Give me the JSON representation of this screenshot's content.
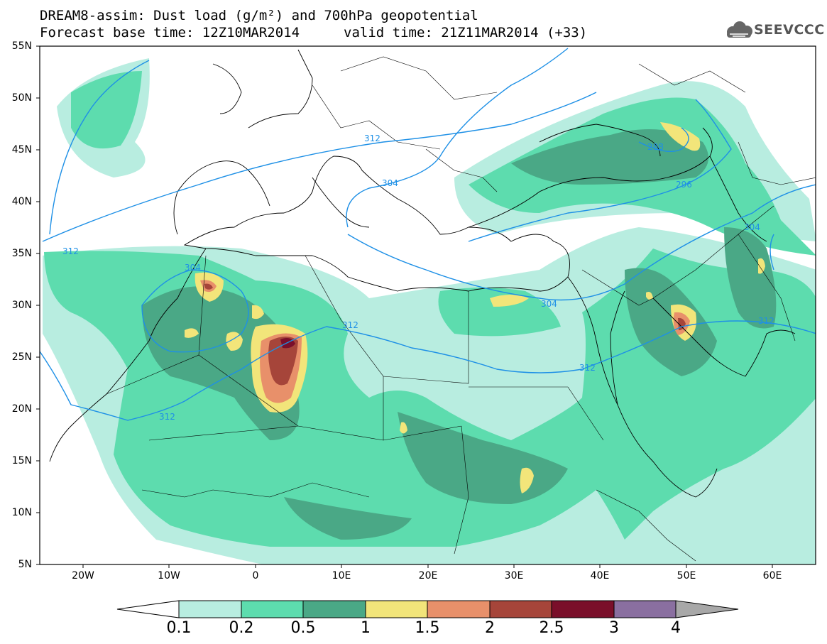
{
  "title": {
    "line1": "DREAM8-assim: Dust load (g/m²) and 700hPa geopotential",
    "line2_base": "Forecast base time: 12Z10MAR2014",
    "line2_valid": "valid time: 21Z11MAR2014 (+33)"
  },
  "logo": {
    "text": "SEEVCCC",
    "icon": "cloud-icon"
  },
  "axes": {
    "lat_labels": [
      "55N",
      "50N",
      "45N",
      "40N",
      "35N",
      "30N",
      "25N",
      "20N",
      "15N",
      "10N",
      "5N"
    ],
    "lon_labels": [
      "20W",
      "10W",
      "0",
      "10E",
      "20E",
      "30E",
      "40E",
      "50E",
      "60E"
    ],
    "lat_range": [
      5,
      55
    ],
    "lon_range": [
      -25,
      65
    ]
  },
  "colorbar": {
    "labels": [
      "0.1",
      "0.2",
      "0.5",
      "1",
      "1.5",
      "2",
      "2.5",
      "3",
      "4"
    ],
    "colors": [
      "#ffffff",
      "#b8ede0",
      "#5ddcae",
      "#4aa886",
      "#f2e57a",
      "#e8906a",
      "#a6453a",
      "#7a0f2a",
      "#8a6fa0",
      "#a8a8a8"
    ]
  },
  "contour_labels": [
    {
      "text": "312",
      "lon": 2.5,
      "lat": 46.5
    },
    {
      "text": "304",
      "lon": 12.5,
      "lat": 41.8
    },
    {
      "text": "312",
      "lon": -20,
      "lat": 34.5
    },
    {
      "text": "304",
      "lon": -6.5,
      "lat": 33.3
    },
    {
      "text": "312",
      "lon": 11,
      "lat": 27.2
    },
    {
      "text": "312",
      "lon": -10,
      "lat": 18.8
    },
    {
      "text": "304",
      "lon": 33.5,
      "lat": 30.0
    },
    {
      "text": "312",
      "lon": 43.5,
      "lat": 24.5
    },
    {
      "text": "288",
      "lon": 47.5,
      "lat": 45.2
    },
    {
      "text": "296",
      "lon": 50.5,
      "lat": 41.5
    },
    {
      "text": "304",
      "lon": 58,
      "lat": 36.5
    },
    {
      "text": "312",
      "lon": 59.5,
      "lat": 28.3
    }
  ]
}
